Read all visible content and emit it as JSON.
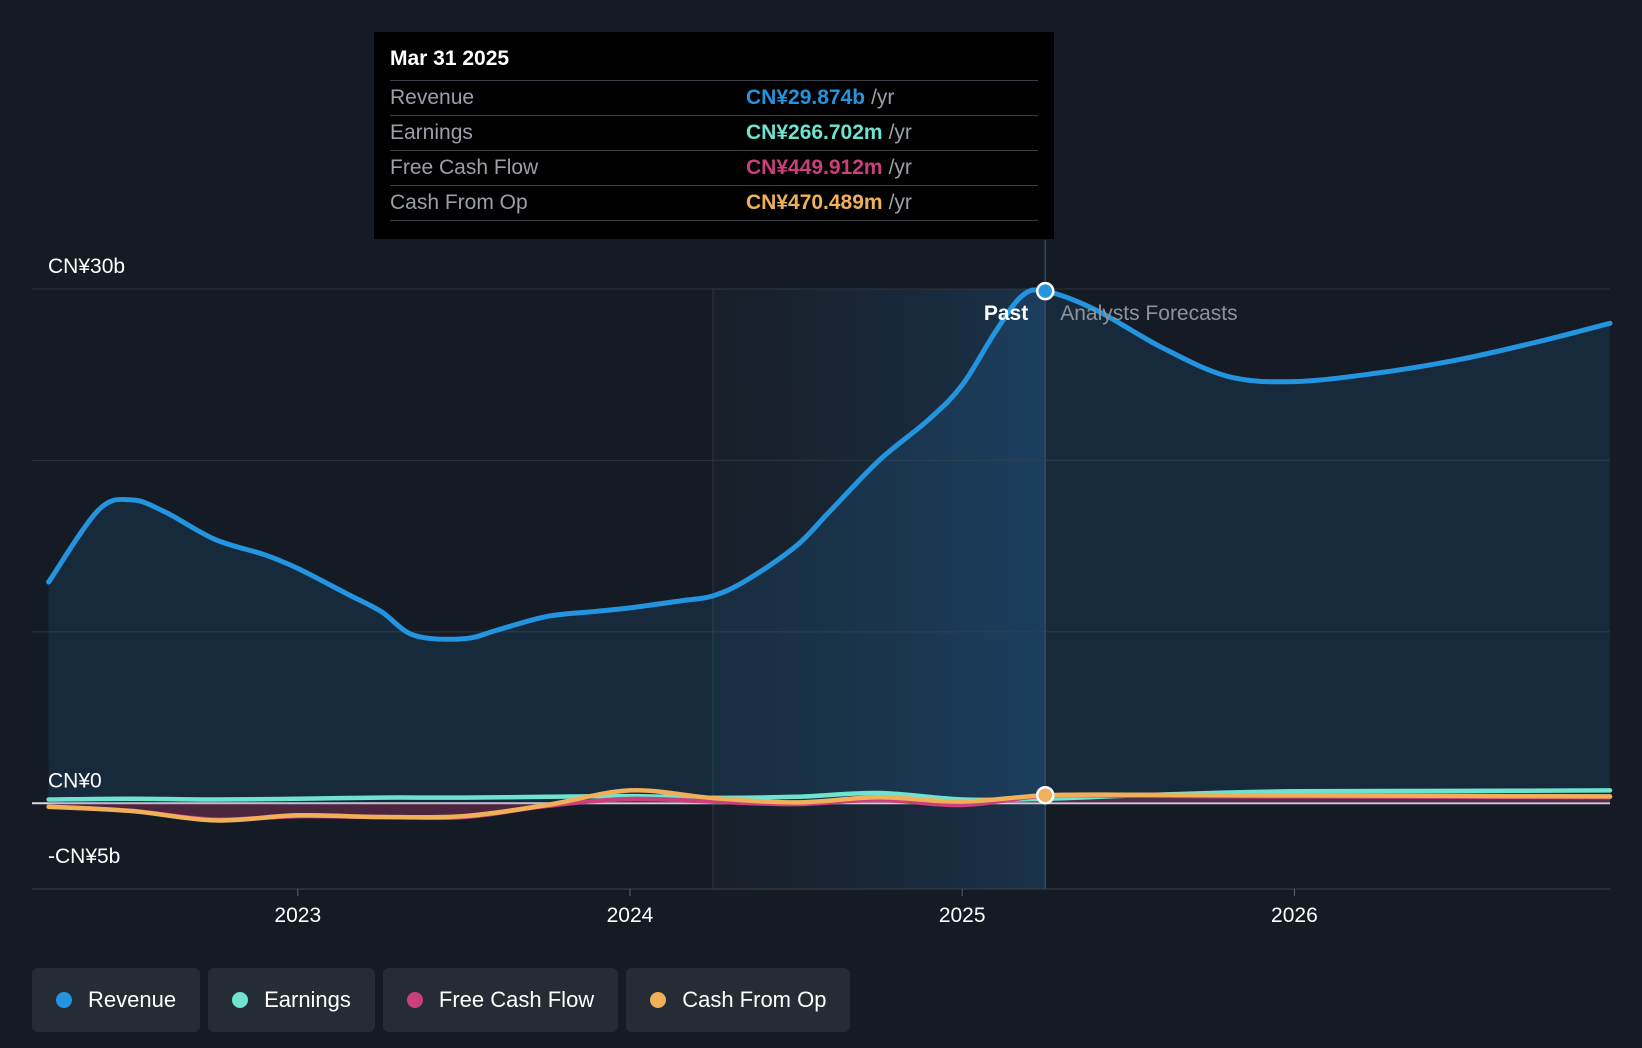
{
  "colors": {
    "revenue": "#2394df",
    "earnings": "#6fe3cf",
    "fcf": "#c9407c",
    "cfo": "#f0b05a",
    "background": "#151b24"
  },
  "tooltip": {
    "date": "Mar 31 2025",
    "rows": [
      {
        "label": "Revenue",
        "value": "CN¥29.874b",
        "unit": "/yr",
        "color": "#2394df"
      },
      {
        "label": "Earnings",
        "value": "CN¥266.702m",
        "unit": "/yr",
        "color": "#6fe3cf"
      },
      {
        "label": "Free Cash Flow",
        "value": "CN¥449.912m",
        "unit": "/yr",
        "color": "#c9407c"
      },
      {
        "label": "Cash From Op",
        "value": "CN¥470.489m",
        "unit": "/yr",
        "color": "#f0b05a"
      }
    ]
  },
  "chart_data": {
    "type": "line",
    "x_range": [
      2022.2,
      2026.95
    ],
    "ylim": [
      -5,
      30
    ],
    "y_tick_labels": [
      {
        "value": 30,
        "label": "CN¥30b"
      },
      {
        "value": 0,
        "label": "CN¥0"
      },
      {
        "value": -5,
        "label": "-CN¥5b"
      }
    ],
    "gridlines": [
      30,
      20,
      10,
      0
    ],
    "x_ticks": [
      {
        "value": 2023,
        "label": "2023"
      },
      {
        "value": 2024,
        "label": "2024"
      },
      {
        "value": 2025,
        "label": "2025"
      },
      {
        "value": 2026,
        "label": "2026"
      }
    ],
    "highlight_start": 2024.25,
    "divider_x": 2025.25,
    "past_label": "Past",
    "forecast_label": "Analysts Forecasts",
    "series": [
      {
        "name": "Revenue",
        "key": "revenue",
        "points": [
          [
            2022.25,
            12.9
          ],
          [
            2022.4,
            17.1
          ],
          [
            2022.5,
            17.7
          ],
          [
            2022.6,
            17.0
          ],
          [
            2022.75,
            15.4
          ],
          [
            2022.9,
            14.5
          ],
          [
            2023.0,
            13.7
          ],
          [
            2023.15,
            12.2
          ],
          [
            2023.25,
            11.2
          ],
          [
            2023.35,
            9.8
          ],
          [
            2023.5,
            9.6
          ],
          [
            2023.6,
            10.1
          ],
          [
            2023.75,
            10.9
          ],
          [
            2023.9,
            11.2
          ],
          [
            2024.0,
            11.4
          ],
          [
            2024.15,
            11.8
          ],
          [
            2024.25,
            12.1
          ],
          [
            2024.35,
            13.0
          ],
          [
            2024.5,
            15.0
          ],
          [
            2024.6,
            17.0
          ],
          [
            2024.75,
            20.0
          ],
          [
            2024.9,
            22.4
          ],
          [
            2025.0,
            24.4
          ],
          [
            2025.1,
            27.5
          ],
          [
            2025.18,
            29.6
          ],
          [
            2025.25,
            29.874
          ],
          [
            2025.4,
            28.8
          ],
          [
            2025.6,
            26.6
          ],
          [
            2025.8,
            24.9
          ],
          [
            2026.0,
            24.6
          ],
          [
            2026.25,
            25.1
          ],
          [
            2026.5,
            25.9
          ],
          [
            2026.75,
            27.0
          ],
          [
            2026.95,
            28.0
          ]
        ]
      },
      {
        "name": "Earnings",
        "key": "earnings",
        "points": [
          [
            2022.25,
            0.22
          ],
          [
            2022.5,
            0.27
          ],
          [
            2022.75,
            0.22
          ],
          [
            2023.0,
            0.26
          ],
          [
            2023.25,
            0.33
          ],
          [
            2023.5,
            0.33
          ],
          [
            2023.75,
            0.38
          ],
          [
            2024.0,
            0.42
          ],
          [
            2024.25,
            0.32
          ],
          [
            2024.5,
            0.38
          ],
          [
            2024.75,
            0.6
          ],
          [
            2025.0,
            0.22
          ],
          [
            2025.25,
            0.266702
          ],
          [
            2025.5,
            0.45
          ],
          [
            2025.75,
            0.6
          ],
          [
            2026.0,
            0.7
          ],
          [
            2026.5,
            0.72
          ],
          [
            2026.95,
            0.75
          ]
        ]
      },
      {
        "name": "Free Cash Flow",
        "key": "fcf",
        "points": [
          [
            2022.25,
            -0.2
          ],
          [
            2022.5,
            -0.45
          ],
          [
            2022.75,
            -0.95
          ],
          [
            2023.0,
            -0.75
          ],
          [
            2023.25,
            -0.8
          ],
          [
            2023.5,
            -0.8
          ],
          [
            2023.75,
            -0.15
          ],
          [
            2024.0,
            0.25
          ],
          [
            2024.25,
            0.1
          ],
          [
            2024.5,
            -0.05
          ],
          [
            2024.75,
            0.2
          ],
          [
            2025.0,
            -0.1
          ],
          [
            2025.25,
            0.449912
          ],
          [
            2025.5,
            0.45
          ],
          [
            2025.75,
            0.42
          ],
          [
            2026.0,
            0.4
          ],
          [
            2026.5,
            0.38
          ],
          [
            2026.95,
            0.36
          ]
        ]
      },
      {
        "name": "Cash From Op",
        "key": "cfo",
        "points": [
          [
            2022.25,
            -0.2
          ],
          [
            2022.5,
            -0.45
          ],
          [
            2022.75,
            -1.0
          ],
          [
            2023.0,
            -0.7
          ],
          [
            2023.25,
            -0.8
          ],
          [
            2023.5,
            -0.75
          ],
          [
            2023.75,
            -0.1
          ],
          [
            2024.0,
            0.75
          ],
          [
            2024.25,
            0.3
          ],
          [
            2024.5,
            0.05
          ],
          [
            2024.75,
            0.35
          ],
          [
            2025.0,
            0.1
          ],
          [
            2025.25,
            0.470489
          ],
          [
            2025.5,
            0.5
          ],
          [
            2025.75,
            0.48
          ],
          [
            2026.0,
            0.46
          ],
          [
            2026.5,
            0.43
          ],
          [
            2026.95,
            0.4
          ]
        ]
      }
    ]
  },
  "legend": [
    {
      "label": "Revenue",
      "color": "#2394df"
    },
    {
      "label": "Earnings",
      "color": "#6fe3cf"
    },
    {
      "label": "Free Cash Flow",
      "color": "#c9407c"
    },
    {
      "label": "Cash From Op",
      "color": "#f0b05a"
    }
  ]
}
